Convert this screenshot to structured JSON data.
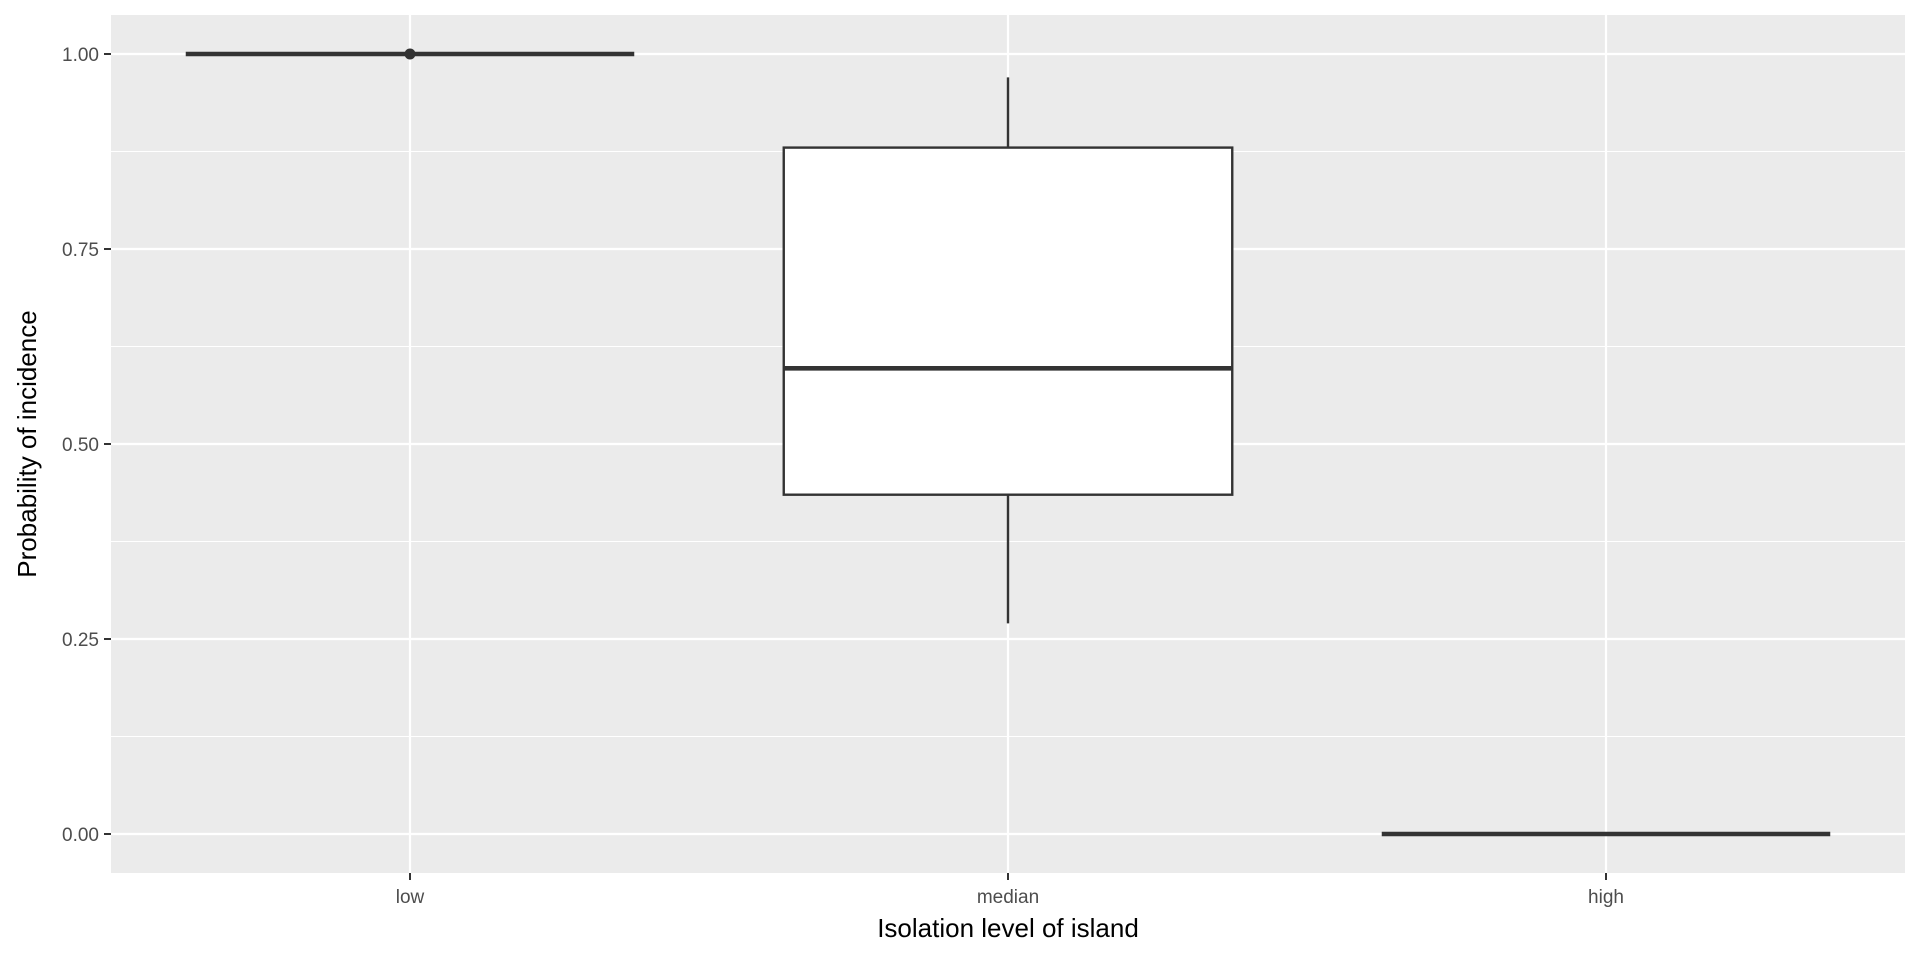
{
  "chart_data": {
    "type": "boxplot",
    "title": "",
    "xlabel": "Isolation level of island",
    "ylabel": "Probability of incidence",
    "categories": [
      "low",
      "median",
      "high"
    ],
    "boxes": [
      {
        "category": "low",
        "lower_whisker": 1.0,
        "q1": 1.0,
        "median": 1.0,
        "q3": 1.0,
        "upper_whisker": 1.0,
        "outliers": [
          1.0
        ]
      },
      {
        "category": "median",
        "lower_whisker": 0.27,
        "q1": 0.435,
        "median": 0.597,
        "q3": 0.88,
        "upper_whisker": 0.97,
        "outliers": []
      },
      {
        "category": "high",
        "lower_whisker": 0.0,
        "q1": 0.0,
        "median": 0.0,
        "q3": 0.0,
        "upper_whisker": 0.0,
        "outliers": []
      }
    ],
    "ylim": [
      -0.05,
      1.05
    ],
    "y_ticks": [
      0.0,
      0.25,
      0.5,
      0.75,
      1.0
    ],
    "y_tick_labels": [
      "0.00",
      "0.25",
      "0.50",
      "0.75",
      "1.00"
    ],
    "y_minor_ticks": [
      0.125,
      0.375,
      0.625,
      0.875
    ],
    "grid": true,
    "legend": "none",
    "colors": {
      "panel_background": "#ebebeb",
      "grid_line": "#ffffff",
      "box_fill": "#ffffff",
      "box_stroke": "#333333",
      "tick_mark": "#333333"
    }
  }
}
